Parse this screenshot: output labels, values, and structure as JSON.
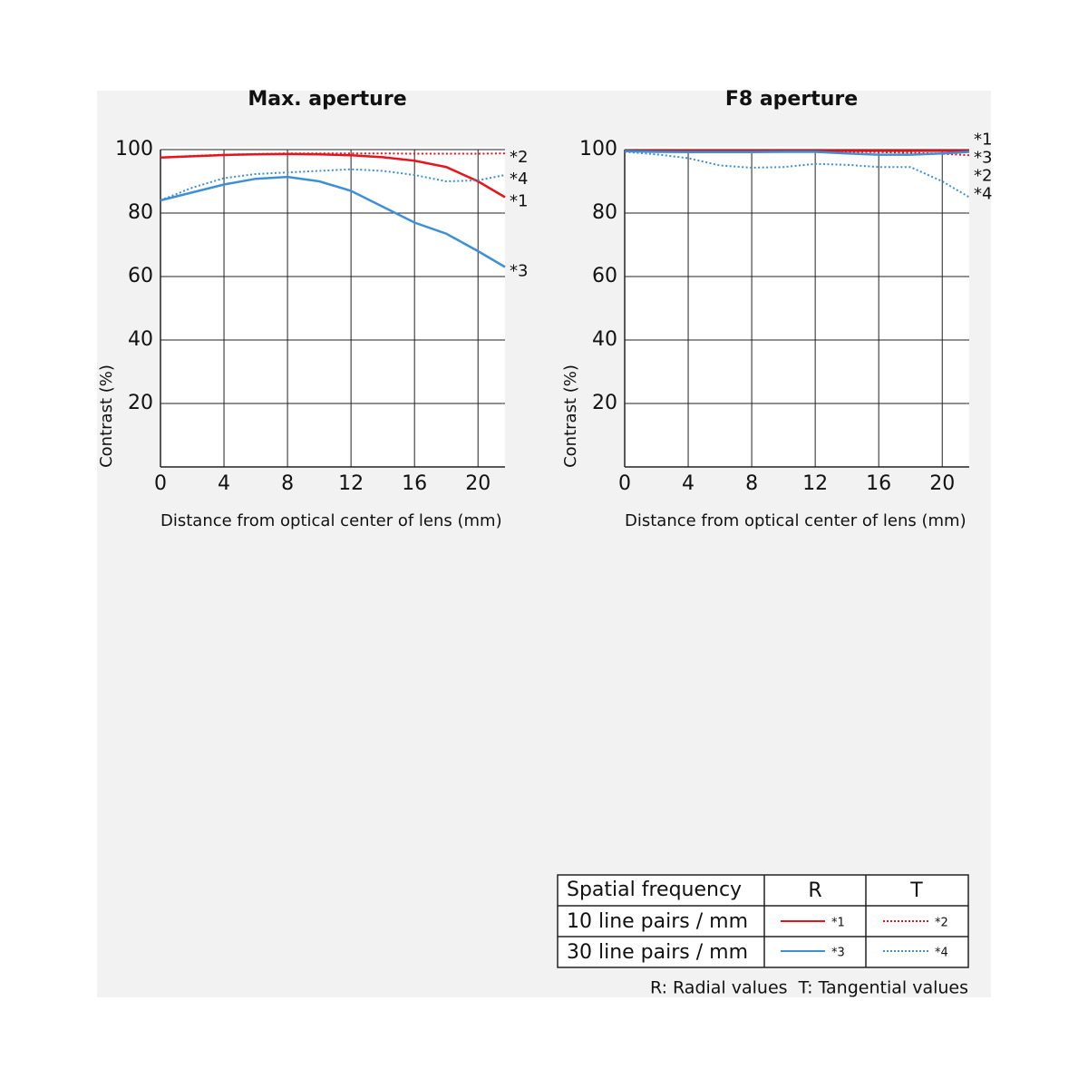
{
  "chart_data": [
    {
      "type": "line",
      "title": "Max. aperture",
      "y_label": "Contrast (%)",
      "x_label": "Distance from optical center of lens (mm)",
      "x": [
        0,
        2,
        4,
        6,
        8,
        10,
        12,
        14,
        16,
        18,
        20,
        21.7
      ],
      "xlim": [
        0,
        21.7
      ],
      "xticks": [
        0,
        4,
        8,
        12,
        16,
        20
      ],
      "ylim": [
        0,
        100
      ],
      "yticks": [
        20,
        40,
        60,
        80,
        100
      ],
      "grid": true,
      "series": [
        {
          "name": "*1",
          "color": "#e8141c",
          "style": "solid",
          "values": [
            97.5,
            97.9,
            98.3,
            98.5,
            98.6,
            98.5,
            98.2,
            97.6,
            96.5,
            94.5,
            90,
            85
          ]
        },
        {
          "name": "*2",
          "color": "#e8141c",
          "style": "dotted",
          "values": [
            97.5,
            98,
            98.4,
            98.6,
            98.8,
            98.8,
            98.8,
            98.8,
            98.7,
            98.7,
            98.7,
            98.8
          ]
        },
        {
          "name": "*3",
          "color": "#3d8fd8",
          "style": "solid",
          "values": [
            84,
            86.5,
            89,
            90.8,
            91.4,
            90,
            87,
            82,
            77,
            73.5,
            68,
            63
          ]
        },
        {
          "name": "*4",
          "color": "#3d8fd8",
          "style": "dotted",
          "values": [
            84,
            88,
            91,
            92.3,
            92.8,
            93.3,
            93.8,
            93.3,
            92,
            90,
            90.3,
            92
          ]
        }
      ]
    },
    {
      "type": "line",
      "title": "F8 aperture",
      "y_label": "Contrast (%)",
      "x_label": "Distance from optical center of lens (mm)",
      "x": [
        0,
        2,
        4,
        6,
        8,
        10,
        12,
        14,
        16,
        18,
        20,
        21.7
      ],
      "xlim": [
        0,
        21.7
      ],
      "xticks": [
        0,
        4,
        8,
        12,
        16,
        20
      ],
      "ylim": [
        0,
        100
      ],
      "yticks": [
        20,
        40,
        60,
        80,
        100
      ],
      "grid": true,
      "series": [
        {
          "name": "*1",
          "color": "#e8141c",
          "style": "solid",
          "values": [
            99.6,
            99.6,
            99.6,
            99.6,
            99.6,
            99.6,
            99.6,
            99.6,
            99.6,
            99.6,
            99.6,
            99.6
          ]
        },
        {
          "name": "*2",
          "color": "#e8141c",
          "style": "dotted",
          "values": [
            99.5,
            99.5,
            99.4,
            99.4,
            99.4,
            99.4,
            99.4,
            99.3,
            99.2,
            99,
            98.7,
            98.2
          ]
        },
        {
          "name": "*3",
          "color": "#3d8fd8",
          "style": "solid",
          "values": [
            99.5,
            99.3,
            99.2,
            99.2,
            99.2,
            99.3,
            99.3,
            98.8,
            98.4,
            98.4,
            98.8,
            99.3
          ]
        },
        {
          "name": "*4",
          "color": "#3d8fd8",
          "style": "dotted",
          "values": [
            99.3,
            98.5,
            97.3,
            95,
            94.3,
            94.5,
            95.5,
            95.2,
            94.5,
            94.5,
            90,
            85
          ]
        }
      ]
    }
  ],
  "legend_table": {
    "header": [
      "Spatial frequency",
      "R",
      "T"
    ],
    "rows": [
      [
        "10 line pairs / mm",
        "*1",
        "*2"
      ],
      [
        "30 line pairs / mm",
        "*3",
        "*4"
      ]
    ],
    "note": "R: Radial values  T: Tangential values"
  }
}
